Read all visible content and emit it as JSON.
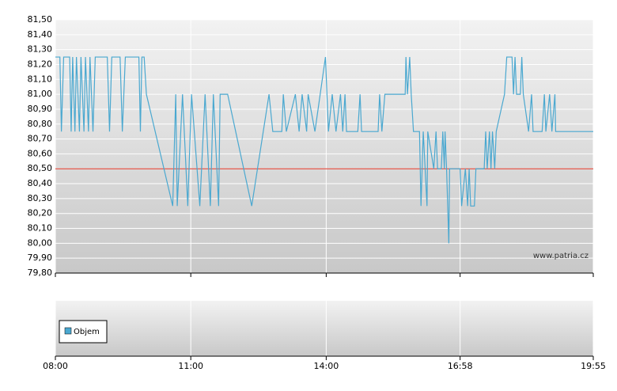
{
  "chart_data": {
    "type": "line",
    "x": [
      "08:00",
      "08:06",
      "08:08",
      "08:11",
      "08:19",
      "08:21",
      "08:23",
      "08:26",
      "08:28",
      "08:32",
      "08:34",
      "08:38",
      "08:40",
      "08:44",
      "08:46",
      "08:50",
      "08:53",
      "09:09",
      "09:12",
      "09:15",
      "09:26",
      "09:29",
      "09:33",
      "09:51",
      "09:53",
      "09:55",
      "09:58",
      "10:01",
      "10:36",
      "10:40",
      "10:42",
      "10:49",
      "10:56",
      "11:01",
      "11:12",
      "11:19",
      "11:26",
      "11:30",
      "11:37",
      "11:39",
      "11:49",
      "12:21",
      "12:44",
      "12:49",
      "13:01",
      "13:03",
      "13:07",
      "13:19",
      "13:24",
      "13:28",
      "13:34",
      "13:36",
      "13:45",
      "13:59",
      "14:03",
      "14:08",
      "14:13",
      "14:19",
      "14:22",
      "14:25",
      "14:27",
      "14:42",
      "14:45",
      "14:47",
      "15:09",
      "15:11",
      "15:14",
      "15:18",
      "15:45",
      "15:46",
      "15:48",
      "15:51",
      "15:53",
      "15:56",
      "16:04",
      "16:06",
      "16:09",
      "16:14",
      "16:15",
      "16:23",
      "16:26",
      "16:28",
      "16:33",
      "16:35",
      "16:37",
      "16:38",
      "16:40",
      "16:43",
      "16:44",
      "16:58",
      "17:00",
      "17:05",
      "17:08",
      "17:10",
      "17:12",
      "17:17",
      "17:19",
      "17:30",
      "17:32",
      "17:34",
      "17:37",
      "17:39",
      "17:41",
      "17:44",
      "17:46",
      "17:57",
      "18:00",
      "18:07",
      "18:09",
      "18:11",
      "18:13",
      "18:18",
      "18:20",
      "18:22",
      "18:29",
      "18:33",
      "18:35",
      "18:47",
      "18:50",
      "18:52",
      "18:57",
      "19:00",
      "19:04",
      "19:05",
      "19:55"
    ],
    "series": [
      {
        "color": "#4aa8d0",
        "values": [
          81.25,
          81.25,
          80.75,
          81.25,
          81.25,
          80.75,
          81.25,
          80.75,
          81.25,
          80.75,
          81.25,
          80.75,
          81.25,
          80.75,
          81.25,
          80.75,
          81.25,
          81.25,
          80.75,
          81.25,
          81.25,
          80.75,
          81.25,
          81.25,
          80.75,
          81.25,
          81.25,
          81.0,
          80.25,
          81.0,
          80.25,
          81.0,
          80.25,
          81.0,
          80.25,
          81.0,
          80.25,
          81.0,
          80.25,
          81.0,
          81.0,
          80.25,
          81.0,
          80.75,
          80.75,
          81.0,
          80.75,
          81.0,
          80.75,
          81.0,
          80.75,
          81.0,
          80.75,
          81.25,
          80.75,
          81.0,
          80.75,
          81.0,
          80.75,
          81.0,
          80.75,
          80.75,
          81.0,
          80.75,
          80.75,
          81.0,
          80.75,
          81.0,
          81.0,
          81.25,
          81.0,
          81.25,
          81.0,
          80.75,
          80.75,
          80.25,
          80.75,
          80.25,
          80.75,
          80.5,
          80.75,
          80.5,
          80.5,
          80.75,
          80.5,
          80.75,
          80.5,
          80.0,
          80.5,
          80.5,
          80.25,
          80.5,
          80.25,
          80.5,
          80.25,
          80.25,
          80.5,
          80.5,
          80.75,
          80.5,
          80.75,
          80.5,
          80.75,
          80.5,
          80.75,
          81.0,
          81.25,
          81.25,
          81.0,
          81.25,
          81.0,
          81.0,
          81.25,
          81.0,
          80.75,
          81.0,
          80.75,
          80.75,
          81.0,
          80.75,
          81.0,
          80.75,
          81.0,
          80.75,
          80.75
        ]
      }
    ],
    "reference_line": {
      "value": 80.5,
      "color": "#e03020"
    },
    "ylim": [
      79.8,
      81.5
    ],
    "yticks": [
      {
        "value": 79.8,
        "label": "79,80"
      },
      {
        "value": 79.9,
        "label": "79,90"
      },
      {
        "value": 80.0,
        "label": "80,00"
      },
      {
        "value": 80.1,
        "label": "80,10"
      },
      {
        "value": 80.2,
        "label": "80,20"
      },
      {
        "value": 80.3,
        "label": "80,30"
      },
      {
        "value": 80.4,
        "label": "80,40"
      },
      {
        "value": 80.5,
        "label": "80,50"
      },
      {
        "value": 80.6,
        "label": "80,60"
      },
      {
        "value": 80.7,
        "label": "80,70"
      },
      {
        "value": 80.8,
        "label": "80,80"
      },
      {
        "value": 80.9,
        "label": "80,90"
      },
      {
        "value": 81.0,
        "label": "81,00"
      },
      {
        "value": 81.1,
        "label": "81,10"
      },
      {
        "value": 81.2,
        "label": "81,20"
      },
      {
        "value": 81.3,
        "label": "81,30"
      },
      {
        "value": 81.4,
        "label": "81,40"
      },
      {
        "value": 81.5,
        "label": "81,50"
      }
    ],
    "xlim": [
      "08:00",
      "19:55"
    ],
    "xticks": [
      "08:00",
      "11:00",
      "14:00",
      "16:58",
      "19:55"
    ],
    "grid": true,
    "watermark": "www.patria.cz",
    "volume_legend": "Objem"
  }
}
